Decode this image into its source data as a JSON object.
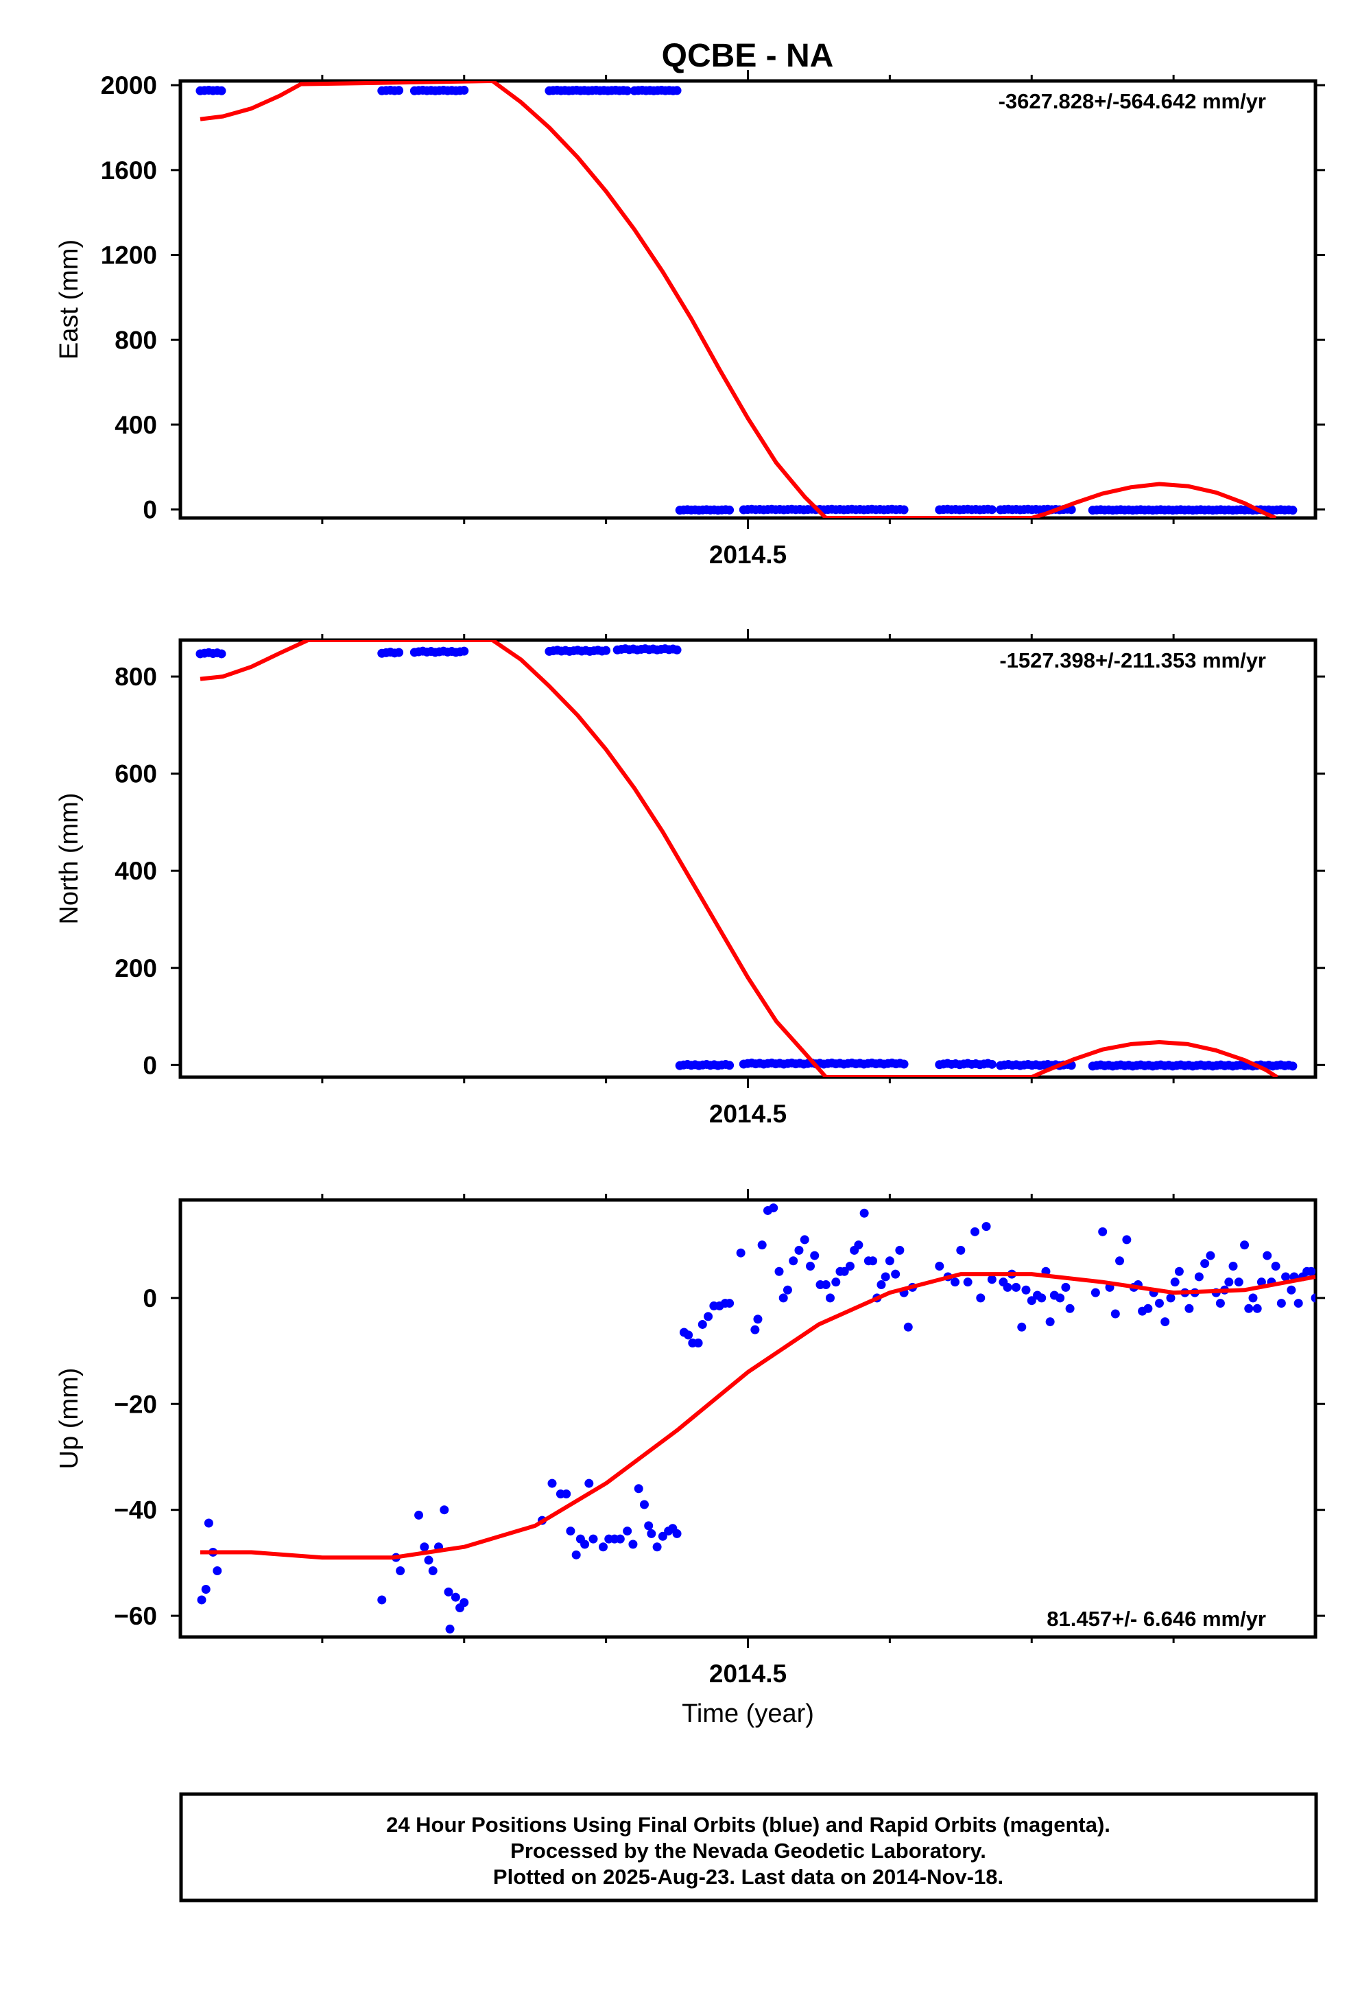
{
  "title": "QCBE - NA",
  "colors": {
    "data": "#0000ff",
    "model": "#ff0000",
    "frame": "#000000"
  },
  "footer": {
    "line1": "24 Hour Positions Using Final Orbits (blue) and Rapid Orbits (magenta).",
    "line2": "Processed by the Nevada Geodetic Laboratory.",
    "line3": "Plotted on 2025-Aug-23. Last data on 2014-Nov-18."
  },
  "chart_data": [
    {
      "type": "scatter",
      "component": "east",
      "ylabel": "East (mm)",
      "xlabel": "",
      "xlim": [
        2014.1,
        2014.9
      ],
      "ylim": [
        -40,
        2020
      ],
      "yticks": [
        0,
        400,
        800,
        1200,
        1600,
        2000
      ],
      "ytick_labels": [
        "0",
        "400",
        "800",
        "1200",
        "1600",
        "2000"
      ],
      "xticks": [
        2014.5
      ],
      "xtick_labels": [
        "2014.5"
      ],
      "x_minor_ticks": [
        2014.2,
        2014.3,
        2014.4,
        2014.6,
        2014.7,
        2014.8
      ],
      "rate_label": "-3627.828+/-564.642 mm/yr",
      "offset_segments": [
        {
          "x_start": 2014.114,
          "x_end": 2014.129,
          "y": 1975
        },
        {
          "x_start": 2014.242,
          "x_end": 2014.254,
          "y": 1975
        },
        {
          "x_start": 2014.265,
          "x_end": 2014.3,
          "y": 1975
        },
        {
          "x_start": 2014.36,
          "x_end": 2014.415,
          "y": 1975
        },
        {
          "x_start": 2014.42,
          "x_end": 2014.45,
          "y": 1975
        },
        {
          "x_start": 2014.452,
          "x_end": 2014.487,
          "y": -2
        },
        {
          "x_start": 2014.497,
          "x_end": 2014.61,
          "y": 0
        },
        {
          "x_start": 2014.635,
          "x_end": 2014.672,
          "y": 0
        },
        {
          "x_start": 2014.678,
          "x_end": 2014.728,
          "y": 0
        },
        {
          "x_start": 2014.743,
          "x_end": 2014.884,
          "y": -2
        }
      ],
      "model_points": [
        [
          2014.114,
          1840
        ],
        [
          2014.13,
          1853
        ],
        [
          2014.15,
          1890
        ],
        [
          2014.17,
          1950
        ],
        [
          2014.185,
          2005
        ],
        [
          2014.32,
          2020
        ],
        [
          2014.34,
          1920
        ],
        [
          2014.36,
          1800
        ],
        [
          2014.38,
          1660
        ],
        [
          2014.4,
          1500
        ],
        [
          2014.42,
          1320
        ],
        [
          2014.44,
          1120
        ],
        [
          2014.46,
          900
        ],
        [
          2014.48,
          660
        ],
        [
          2014.5,
          430
        ],
        [
          2014.52,
          220
        ],
        [
          2014.54,
          60
        ],
        [
          2014.555,
          -40
        ],
        [
          2014.7,
          -40
        ],
        [
          2014.71,
          -20
        ],
        [
          2014.73,
          30
        ],
        [
          2014.75,
          75
        ],
        [
          2014.77,
          105
        ],
        [
          2014.79,
          120
        ],
        [
          2014.81,
          110
        ],
        [
          2014.83,
          80
        ],
        [
          2014.85,
          30
        ],
        [
          2014.865,
          -20
        ],
        [
          2014.872,
          -40
        ]
      ]
    },
    {
      "type": "scatter",
      "component": "north",
      "ylabel": "North (mm)",
      "xlabel": "",
      "xlim": [
        2014.1,
        2014.9
      ],
      "ylim": [
        -25,
        875
      ],
      "yticks": [
        0,
        200,
        400,
        600,
        800
      ],
      "ytick_labels": [
        "0",
        "200",
        "400",
        "600",
        "800"
      ],
      "xticks": [
        2014.5
      ],
      "xtick_labels": [
        "2014.5"
      ],
      "x_minor_ticks": [
        2014.2,
        2014.3,
        2014.4,
        2014.6,
        2014.7,
        2014.8
      ],
      "rate_label": "-1527.398+/-211.353 mm/yr",
      "offset_segments": [
        {
          "x_start": 2014.114,
          "x_end": 2014.129,
          "y": 848
        },
        {
          "x_start": 2014.242,
          "x_end": 2014.254,
          "y": 849
        },
        {
          "x_start": 2014.265,
          "x_end": 2014.3,
          "y": 851
        },
        {
          "x_start": 2014.36,
          "x_end": 2014.4,
          "y": 853
        },
        {
          "x_start": 2014.408,
          "x_end": 2014.45,
          "y": 856
        },
        {
          "x_start": 2014.452,
          "x_end": 2014.487,
          "y": 0
        },
        {
          "x_start": 2014.497,
          "x_end": 2014.61,
          "y": 3
        },
        {
          "x_start": 2014.635,
          "x_end": 2014.672,
          "y": 2
        },
        {
          "x_start": 2014.678,
          "x_end": 2014.728,
          "y": 0
        },
        {
          "x_start": 2014.743,
          "x_end": 2014.884,
          "y": -1
        }
      ],
      "model_points": [
        [
          2014.114,
          795
        ],
        [
          2014.13,
          800
        ],
        [
          2014.15,
          820
        ],
        [
          2014.17,
          848
        ],
        [
          2014.19,
          875
        ],
        [
          2014.32,
          875
        ],
        [
          2014.34,
          835
        ],
        [
          2014.36,
          780
        ],
        [
          2014.38,
          720
        ],
        [
          2014.4,
          650
        ],
        [
          2014.42,
          570
        ],
        [
          2014.44,
          480
        ],
        [
          2014.46,
          380
        ],
        [
          2014.48,
          280
        ],
        [
          2014.5,
          180
        ],
        [
          2014.52,
          90
        ],
        [
          2014.54,
          25
        ],
        [
          2014.555,
          -25
        ],
        [
          2014.7,
          -25
        ],
        [
          2014.71,
          -12
        ],
        [
          2014.73,
          12
        ],
        [
          2014.75,
          32
        ],
        [
          2014.77,
          43
        ],
        [
          2014.79,
          47
        ],
        [
          2014.81,
          43
        ],
        [
          2014.83,
          30
        ],
        [
          2014.85,
          10
        ],
        [
          2014.865,
          -10
        ],
        [
          2014.873,
          -25
        ]
      ]
    },
    {
      "type": "scatter",
      "component": "up",
      "ylabel": "Up (mm)",
      "xlabel": "Time (year)",
      "xlim": [
        2014.1,
        2014.9
      ],
      "ylim": [
        -64,
        18.5
      ],
      "yticks": [
        -60,
        -40,
        -20,
        0
      ],
      "ytick_labels": [
        "−60",
        "−40",
        "−20",
        "0"
      ],
      "xticks": [
        2014.5
      ],
      "xtick_labels": [
        "2014.5"
      ],
      "x_minor_ticks": [
        2014.2,
        2014.3,
        2014.4,
        2014.6,
        2014.7,
        2014.8
      ],
      "rate_label": "81.457+/- 6.646 mm/yr",
      "points": [
        [
          2014.115,
          -57
        ],
        [
          2014.118,
          -55
        ],
        [
          2014.12,
          -42.5
        ],
        [
          2014.123,
          -48
        ],
        [
          2014.126,
          -51.5
        ],
        [
          2014.242,
          -57
        ],
        [
          2014.252,
          -49
        ],
        [
          2014.255,
          -51.5
        ],
        [
          2014.268,
          -41
        ],
        [
          2014.272,
          -47
        ],
        [
          2014.275,
          -49.5
        ],
        [
          2014.278,
          -51.5
        ],
        [
          2014.282,
          -47
        ],
        [
          2014.286,
          -40
        ],
        [
          2014.289,
          -55.5
        ],
        [
          2014.29,
          -62.5
        ],
        [
          2014.294,
          -56.5
        ],
        [
          2014.297,
          -58.5
        ],
        [
          2014.3,
          -57.5
        ],
        [
          2014.355,
          -42
        ],
        [
          2014.362,
          -35
        ],
        [
          2014.368,
          -37
        ],
        [
          2014.372,
          -37
        ],
        [
          2014.375,
          -44
        ],
        [
          2014.379,
          -48.5
        ],
        [
          2014.382,
          -45.5
        ],
        [
          2014.385,
          -46.5
        ],
        [
          2014.388,
          -35
        ],
        [
          2014.391,
          -45.5
        ],
        [
          2014.398,
          -47
        ],
        [
          2014.402,
          -45.5
        ],
        [
          2014.406,
          -45.5
        ],
        [
          2014.41,
          -45.5
        ],
        [
          2014.415,
          -44
        ],
        [
          2014.419,
          -46.5
        ],
        [
          2014.423,
          -36
        ],
        [
          2014.427,
          -39
        ],
        [
          2014.43,
          -43
        ],
        [
          2014.432,
          -44.5
        ],
        [
          2014.436,
          -47
        ],
        [
          2014.44,
          -45
        ],
        [
          2014.444,
          -44
        ],
        [
          2014.447,
          -43.5
        ],
        [
          2014.45,
          -44.5
        ],
        [
          2014.455,
          -6.5
        ],
        [
          2014.458,
          -7
        ],
        [
          2014.461,
          -8.5
        ],
        [
          2014.465,
          -8.5
        ],
        [
          2014.468,
          -5
        ],
        [
          2014.472,
          -3.5
        ],
        [
          2014.476,
          -1.5
        ],
        [
          2014.48,
          -1.5
        ],
        [
          2014.484,
          -1
        ],
        [
          2014.487,
          -1
        ],
        [
          2014.495,
          8.5
        ],
        [
          2014.505,
          -6
        ],
        [
          2014.507,
          -4
        ],
        [
          2014.51,
          10
        ],
        [
          2014.514,
          16.5
        ],
        [
          2014.518,
          17
        ],
        [
          2014.522,
          5
        ],
        [
          2014.525,
          0
        ],
        [
          2014.528,
          1.5
        ],
        [
          2014.532,
          7
        ],
        [
          2014.536,
          9
        ],
        [
          2014.54,
          11
        ],
        [
          2014.544,
          6
        ],
        [
          2014.547,
          8
        ],
        [
          2014.551,
          2.5
        ],
        [
          2014.555,
          2.5
        ],
        [
          2014.558,
          0
        ],
        [
          2014.562,
          3
        ],
        [
          2014.565,
          5
        ],
        [
          2014.568,
          5
        ],
        [
          2014.572,
          6
        ],
        [
          2014.575,
          9
        ],
        [
          2014.578,
          10
        ],
        [
          2014.582,
          16
        ],
        [
          2014.585,
          7
        ],
        [
          2014.588,
          7
        ],
        [
          2014.591,
          0
        ],
        [
          2014.594,
          2.5
        ],
        [
          2014.597,
          4
        ],
        [
          2014.6,
          7
        ],
        [
          2014.604,
          4.5
        ],
        [
          2014.607,
          9
        ],
        [
          2014.61,
          1
        ],
        [
          2014.613,
          -5.5
        ],
        [
          2014.616,
          2
        ],
        [
          2014.635,
          6
        ],
        [
          2014.641,
          4
        ],
        [
          2014.646,
          3
        ],
        [
          2014.65,
          9
        ],
        [
          2014.655,
          3
        ],
        [
          2014.66,
          12.5
        ],
        [
          2014.664,
          0
        ],
        [
          2014.668,
          13.5
        ],
        [
          2014.672,
          3.5
        ],
        [
          2014.68,
          3
        ],
        [
          2014.683,
          2
        ],
        [
          2014.686,
          4.5
        ],
        [
          2014.689,
          2
        ],
        [
          2014.693,
          -5.5
        ],
        [
          2014.696,
          1.5
        ],
        [
          2014.7,
          -0.5
        ],
        [
          2014.704,
          0.5
        ],
        [
          2014.707,
          0
        ],
        [
          2014.71,
          5
        ],
        [
          2014.713,
          -4.5
        ],
        [
          2014.716,
          0.5
        ],
        [
          2014.72,
          0
        ],
        [
          2014.724,
          2
        ],
        [
          2014.727,
          -2
        ],
        [
          2014.745,
          1
        ],
        [
          2014.75,
          12.5
        ],
        [
          2014.755,
          2
        ],
        [
          2014.759,
          -3
        ],
        [
          2014.762,
          7
        ],
        [
          2014.767,
          11
        ],
        [
          2014.772,
          2
        ],
        [
          2014.775,
          2.5
        ],
        [
          2014.778,
          -2.5
        ],
        [
          2014.782,
          -2
        ],
        [
          2014.786,
          1
        ],
        [
          2014.79,
          -1
        ],
        [
          2014.794,
          -4.5
        ],
        [
          2014.798,
          0
        ],
        [
          2014.801,
          3
        ],
        [
          2014.804,
          5
        ],
        [
          2014.808,
          1
        ],
        [
          2014.811,
          -2
        ],
        [
          2014.815,
          1
        ],
        [
          2014.818,
          4
        ],
        [
          2014.822,
          6.5
        ],
        [
          2014.826,
          8
        ],
        [
          2014.83,
          1
        ],
        [
          2014.833,
          -1
        ],
        [
          2014.836,
          1.5
        ],
        [
          2014.839,
          3
        ],
        [
          2014.842,
          6
        ],
        [
          2014.846,
          3
        ],
        [
          2014.85,
          10
        ],
        [
          2014.853,
          -2
        ],
        [
          2014.856,
          0
        ],
        [
          2014.859,
          -2
        ],
        [
          2014.862,
          3
        ],
        [
          2014.866,
          8
        ],
        [
          2014.869,
          3
        ],
        [
          2014.872,
          6
        ],
        [
          2014.876,
          -1
        ],
        [
          2014.879,
          4
        ],
        [
          2014.883,
          1.5
        ],
        [
          2014.885,
          4
        ],
        [
          2014.888,
          -1
        ],
        [
          2014.891,
          4
        ],
        [
          2014.894,
          5
        ],
        [
          2014.897,
          5
        ],
        [
          2014.9,
          0
        ]
      ],
      "model_points": [
        [
          2014.114,
          -48
        ],
        [
          2014.15,
          -48
        ],
        [
          2014.2,
          -49
        ],
        [
          2014.25,
          -49
        ],
        [
          2014.3,
          -47
        ],
        [
          2014.35,
          -43
        ],
        [
          2014.4,
          -35
        ],
        [
          2014.45,
          -25
        ],
        [
          2014.5,
          -14
        ],
        [
          2014.55,
          -5
        ],
        [
          2014.6,
          1
        ],
        [
          2014.65,
          4.5
        ],
        [
          2014.7,
          4.5
        ],
        [
          2014.75,
          3
        ],
        [
          2014.8,
          1
        ],
        [
          2014.85,
          1.5
        ],
        [
          2014.9,
          4
        ]
      ]
    }
  ]
}
